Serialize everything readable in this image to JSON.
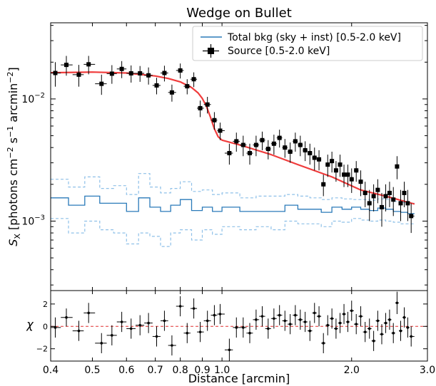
{
  "chart_data": [
    {
      "type": "scatter",
      "panel": "main",
      "title": "Wedge on Bullet",
      "ylabel": "S_X [photons cm⁻² s⁻¹ arcmin⁻²]",
      "ylabel_parts": {
        "S": "S",
        "sub": "X",
        "a": " [photons cm",
        "e1": "−2",
        "b": " s",
        "e2": "−1",
        "c": " arcmin",
        "e3": "−2",
        "d": "]"
      },
      "xscale": "log",
      "yscale": "log",
      "xlim": [
        0.4,
        3.0
      ],
      "ylim": [
        0.00027,
        0.042
      ],
      "ytick_labels": [
        {
          "base": "10",
          "exp": "−2",
          "value": 0.01
        },
        {
          "base": "10",
          "exp": "−3",
          "value": 0.001
        }
      ],
      "legend_position": "top-right",
      "series": [
        {
          "name": "Source [0.5-2.0 keV]",
          "kind": "errorbar",
          "color": "#000000",
          "points": [
            [
              0.41,
              0.0163,
              0.0037
            ],
            [
              0.435,
              0.019,
              0.0035
            ],
            [
              0.465,
              0.0158,
              0.0032
            ],
            [
              0.49,
              0.0192,
              0.0033
            ],
            [
              0.525,
              0.0133,
              0.0025
            ],
            [
              0.555,
              0.0161,
              0.0028
            ],
            [
              0.585,
              0.0176,
              0.0028
            ],
            [
              0.615,
              0.0162,
              0.0026
            ],
            [
              0.645,
              0.0162,
              0.0024
            ],
            [
              0.675,
              0.0156,
              0.0025
            ],
            [
              0.705,
              0.0129,
              0.002
            ],
            [
              0.735,
              0.0163,
              0.0024
            ],
            [
              0.765,
              0.0113,
              0.0018
            ],
            [
              0.8,
              0.0171,
              0.0024
            ],
            [
              0.83,
              0.0127,
              0.0018
            ],
            [
              0.86,
              0.0145,
              0.002
            ],
            [
              0.89,
              0.0084,
              0.0013
            ],
            [
              0.925,
              0.009,
              0.0014
            ],
            [
              0.96,
              0.0067,
              0.0011
            ],
            [
              0.99,
              0.0055,
              0.0009
            ],
            [
              1.04,
              0.0036,
              0.0007
            ],
            [
              1.08,
              0.0045,
              0.0008
            ],
            [
              1.12,
              0.0042,
              0.0008
            ],
            [
              1.16,
              0.0036,
              0.0007
            ],
            [
              1.2,
              0.0042,
              0.0008
            ],
            [
              1.24,
              0.0046,
              0.0008
            ],
            [
              1.28,
              0.0039,
              0.0007
            ],
            [
              1.32,
              0.0043,
              0.0008
            ],
            [
              1.36,
              0.0048,
              0.0008
            ],
            [
              1.4,
              0.004,
              0.0007
            ],
            [
              1.44,
              0.0037,
              0.0007
            ],
            [
              1.48,
              0.0045,
              0.0008
            ],
            [
              1.52,
              0.0042,
              0.0008
            ],
            [
              1.56,
              0.0038,
              0.0007
            ],
            [
              1.6,
              0.0036,
              0.0007
            ],
            [
              1.64,
              0.0033,
              0.0007
            ],
            [
              1.68,
              0.0032,
              0.0006
            ],
            [
              1.72,
              0.002,
              0.0004
            ],
            [
              1.76,
              0.0029,
              0.0006
            ],
            [
              1.8,
              0.0031,
              0.0006
            ],
            [
              1.84,
              0.0026,
              0.0005
            ],
            [
              1.88,
              0.0029,
              0.0006
            ],
            [
              1.92,
              0.0024,
              0.0005
            ],
            [
              1.96,
              0.0024,
              0.0005
            ],
            [
              2.0,
              0.0022,
              0.0005
            ],
            [
              2.05,
              0.0026,
              0.0005
            ],
            [
              2.1,
              0.0021,
              0.0005
            ],
            [
              2.15,
              0.0017,
              0.0004
            ],
            [
              2.2,
              0.0014,
              0.0004
            ],
            [
              2.25,
              0.0016,
              0.0004
            ],
            [
              2.3,
              0.0018,
              0.0004
            ],
            [
              2.35,
              0.0013,
              0.0004
            ],
            [
              2.4,
              0.0016,
              0.0004
            ],
            [
              2.45,
              0.0017,
              0.0004
            ],
            [
              2.5,
              0.0015,
              0.0004
            ],
            [
              2.55,
              0.0028,
              0.0006
            ],
            [
              2.6,
              0.0014,
              0.0004
            ],
            [
              2.65,
              0.0017,
              0.0004
            ],
            [
              2.7,
              0.0014,
              0.0004
            ],
            [
              2.75,
              0.0011,
              0.0003
            ]
          ]
        },
        {
          "name": "model",
          "kind": "line",
          "color": "#f03c3c",
          "x": [
            0.4,
            0.5,
            0.6,
            0.7,
            0.75,
            0.8,
            0.85,
            0.88,
            0.9,
            0.92,
            0.94,
            0.96,
            0.98,
            1.0,
            1.1,
            1.3,
            1.5,
            1.8,
            2.1,
            2.4,
            2.8
          ],
          "y": [
            0.0164,
            0.0166,
            0.0163,
            0.0154,
            0.0147,
            0.0138,
            0.0124,
            0.0112,
            0.0101,
            0.0087,
            0.0071,
            0.0057,
            0.0049,
            0.0046,
            0.0042,
            0.0035,
            0.0029,
            0.0023,
            0.0018,
            0.0016,
            0.00138
          ]
        },
        {
          "name": "Total bkg (sky + inst) [0.5-2.0 keV]",
          "kind": "step",
          "color": "#2a7ab9",
          "edges": [
            0.4,
            0.44,
            0.48,
            0.52,
            0.56,
            0.6,
            0.64,
            0.68,
            0.72,
            0.76,
            0.8,
            0.85,
            0.9,
            0.95,
            1.0,
            1.1,
            1.2,
            1.3,
            1.4,
            1.5,
            1.6,
            1.7,
            1.8,
            1.9,
            2.0,
            2.1,
            2.2,
            2.3,
            2.4,
            2.5,
            2.6,
            2.7,
            2.8
          ],
          "values": [
            0.00155,
            0.00135,
            0.0016,
            0.0014,
            0.0014,
            0.0012,
            0.00155,
            0.0013,
            0.0012,
            0.00135,
            0.0015,
            0.00122,
            0.0013,
            0.0012,
            0.0013,
            0.0012,
            0.0012,
            0.0012,
            0.00135,
            0.00125,
            0.00125,
            0.00118,
            0.0013,
            0.00125,
            0.0013,
            0.00125,
            0.00122,
            0.00128,
            0.00125,
            0.0012,
            0.00118,
            0.00115
          ],
          "band_upper": [
            0.0022,
            0.0019,
            0.0023,
            0.00185,
            0.00195,
            0.00165,
            0.00245,
            0.0019,
            0.0017,
            0.00185,
            0.0021,
            0.00175,
            0.0018,
            0.00165,
            0.0017,
            0.00155,
            0.0016,
            0.0016,
            0.00165,
            0.0016,
            0.00155,
            0.0015,
            0.00155,
            0.00152,
            0.0015,
            0.0015,
            0.00148,
            0.00152,
            0.0015,
            0.00145,
            0.00142,
            0.0014
          ],
          "band_lower": [
            0.00105,
            0.0008,
            0.001,
            0.00085,
            0.0008,
            0.00065,
            0.0008,
            0.00075,
            0.00062,
            0.0008,
            0.00085,
            0.0007,
            0.00085,
            0.00078,
            0.0009,
            0.00085,
            0.0009,
            0.00085,
            0.001,
            0.00095,
            0.00095,
            0.0009,
            0.001,
            0.00098,
            0.00105,
            0.00102,
            0.001,
            0.00102,
            0.001,
            0.00098,
            0.00095,
            0.00095
          ]
        }
      ]
    },
    {
      "type": "scatter",
      "panel": "residuals",
      "xlabel": "Distance [arcmin]",
      "ylabel": "χ",
      "xscale": "log",
      "xlim": [
        0.4,
        3.0
      ],
      "ylim": [
        -3.1,
        3.2
      ],
      "xtick_labels": [
        {
          "value": 0.4,
          "label": "0.4",
          "small": false
        },
        {
          "value": 0.5,
          "label": "0.5",
          "small": false
        },
        {
          "value": 0.6,
          "label": "0.6",
          "small": false
        },
        {
          "value": 0.7,
          "label": "0.7",
          "small": false
        },
        {
          "value": 0.8,
          "label": "0.8",
          "small": false
        },
        {
          "value": 0.9,
          "label": "0.9",
          "small": false
        },
        {
          "value": 1.0,
          "label": "1.0",
          "small": false
        },
        {
          "value": 2.0,
          "label": "2.0",
          "small": false
        },
        {
          "value": 3.0,
          "label": "3.0",
          "small": false
        }
      ],
      "ytick_labels": [
        {
          "value": 2,
          "label": "2"
        },
        {
          "value": 0,
          "label": "0"
        },
        {
          "value": -2,
          "label": "−2"
        }
      ],
      "zero_line_color": "#e03030",
      "series": [
        {
          "name": "residuals",
          "kind": "errorbar",
          "color": "#000000",
          "points": [
            [
              0.41,
              -0.1,
              0.9
            ],
            [
              0.435,
              0.8,
              0.8
            ],
            [
              0.465,
              -0.4,
              0.9
            ],
            [
              0.49,
              1.2,
              0.9
            ],
            [
              0.525,
              -1.5,
              0.9
            ],
            [
              0.555,
              -0.8,
              0.9
            ],
            [
              0.585,
              0.4,
              0.9
            ],
            [
              0.615,
              -0.2,
              0.9
            ],
            [
              0.645,
              0.1,
              0.9
            ],
            [
              0.675,
              0.3,
              0.9
            ],
            [
              0.705,
              -0.9,
              0.9
            ],
            [
              0.735,
              0.5,
              0.9
            ],
            [
              0.765,
              -1.7,
              0.9
            ],
            [
              0.8,
              1.8,
              0.9
            ],
            [
              0.83,
              -0.6,
              0.9
            ],
            [
              0.86,
              1.6,
              0.9
            ],
            [
              0.89,
              -0.5,
              0.9
            ],
            [
              0.925,
              0.5,
              0.9
            ],
            [
              0.96,
              1.0,
              0.9
            ],
            [
              0.99,
              1.1,
              0.9
            ],
            [
              1.04,
              -2.1,
              1.0
            ],
            [
              1.08,
              -0.1,
              0.9
            ],
            [
              1.12,
              -0.1,
              0.9
            ],
            [
              1.16,
              -0.6,
              0.9
            ],
            [
              1.2,
              0.6,
              0.9
            ],
            [
              1.24,
              0.9,
              0.9
            ],
            [
              1.28,
              -0.2,
              0.9
            ],
            [
              1.32,
              0.7,
              0.9
            ],
            [
              1.36,
              1.0,
              0.9
            ],
            [
              1.4,
              0.5,
              0.9
            ],
            [
              1.44,
              0.2,
              0.9
            ],
            [
              1.48,
              1.0,
              0.9
            ],
            [
              1.52,
              0.6,
              0.9
            ],
            [
              1.56,
              0.4,
              0.9
            ],
            [
              1.6,
              -0.4,
              0.9
            ],
            [
              1.64,
              1.2,
              0.9
            ],
            [
              1.68,
              0.9,
              0.9
            ],
            [
              1.72,
              -1.5,
              0.9
            ],
            [
              1.76,
              0.1,
              0.9
            ],
            [
              1.8,
              0.7,
              0.9
            ],
            [
              1.84,
              -0.2,
              0.9
            ],
            [
              1.88,
              0.3,
              0.9
            ],
            [
              1.92,
              1.1,
              0.9
            ],
            [
              1.96,
              0.4,
              0.9
            ],
            [
              2.0,
              1.4,
              0.9
            ],
            [
              2.05,
              0.2,
              0.9
            ],
            [
              2.1,
              0.9,
              0.9
            ],
            [
              2.15,
              -0.5,
              0.9
            ],
            [
              2.2,
              -0.2,
              0.9
            ],
            [
              2.25,
              -1.3,
              0.9
            ],
            [
              2.3,
              0.5,
              0.9
            ],
            [
              2.35,
              -0.7,
              0.9
            ],
            [
              2.4,
              0.3,
              0.9
            ],
            [
              2.45,
              0.6,
              0.9
            ],
            [
              2.5,
              -0.6,
              0.9
            ],
            [
              2.55,
              2.1,
              1.0
            ],
            [
              2.6,
              -0.4,
              0.9
            ],
            [
              2.65,
              0.8,
              0.9
            ],
            [
              2.7,
              -0.1,
              0.9
            ],
            [
              2.75,
              -0.9,
              0.9
            ]
          ]
        }
      ]
    }
  ]
}
